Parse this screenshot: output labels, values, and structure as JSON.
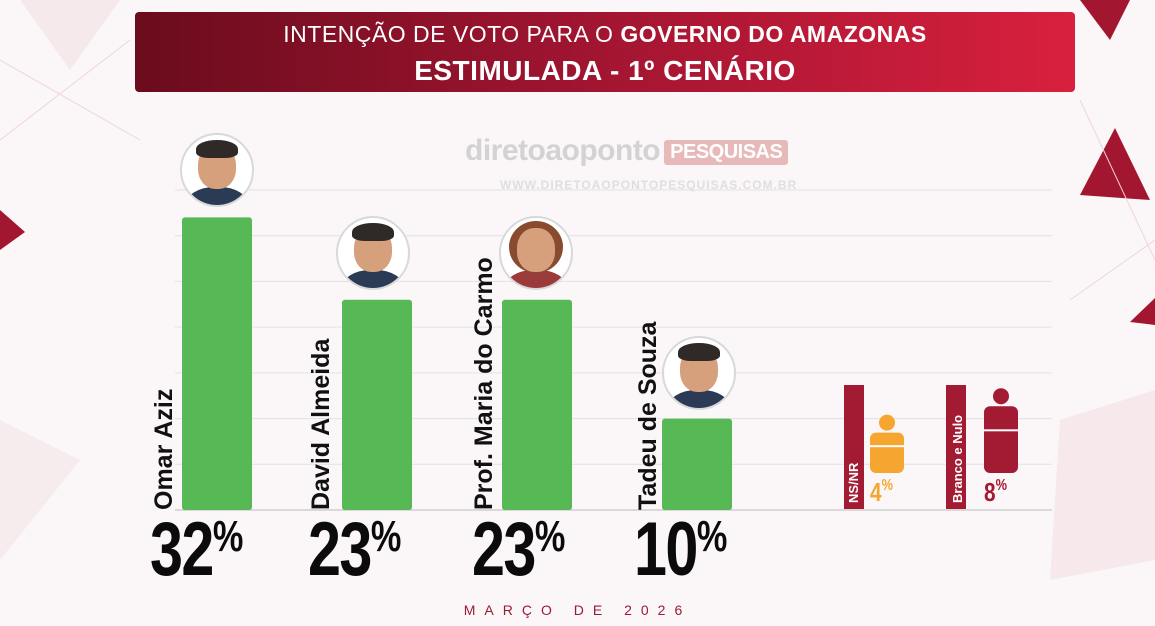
{
  "header": {
    "title_prefix": "INTENÇÃO DE VOTO PARA O ",
    "title_bold": "GOVERNO DO AMAZONAS",
    "subtitle": "ESTIMULADA - 1º CENÁRIO"
  },
  "watermark": {
    "brand": "diretoaoponto",
    "tag": "PESQUISAS",
    "url": "WWW.DIRETOAOPONTOPESQUISAS.COM.BR"
  },
  "footer": {
    "date": "MARÇO DE 2026"
  },
  "colors": {
    "candidate_bar": "#57b955",
    "nsnr": "#f6a530",
    "branco_nulo": "#a31b33",
    "banner": "#a0122e"
  },
  "chart_data": {
    "type": "bar",
    "title": "INTENÇÃO DE VOTO PARA O GOVERNO DO AMAZONAS",
    "subtitle": "ESTIMULADA - 1º CENÁRIO",
    "ylim": [
      0,
      35
    ],
    "grid": true,
    "categories": [
      "Omar Aziz",
      "David Almeida",
      "Prof. Maria do Carmo",
      "Tadeu de Souza",
      "NS/NR",
      "Branco e Nulo"
    ],
    "values": [
      32,
      23,
      23,
      10,
      4,
      8
    ],
    "labels": [
      "32%",
      "23%",
      "23%",
      "10%",
      "4%",
      "8%"
    ]
  }
}
